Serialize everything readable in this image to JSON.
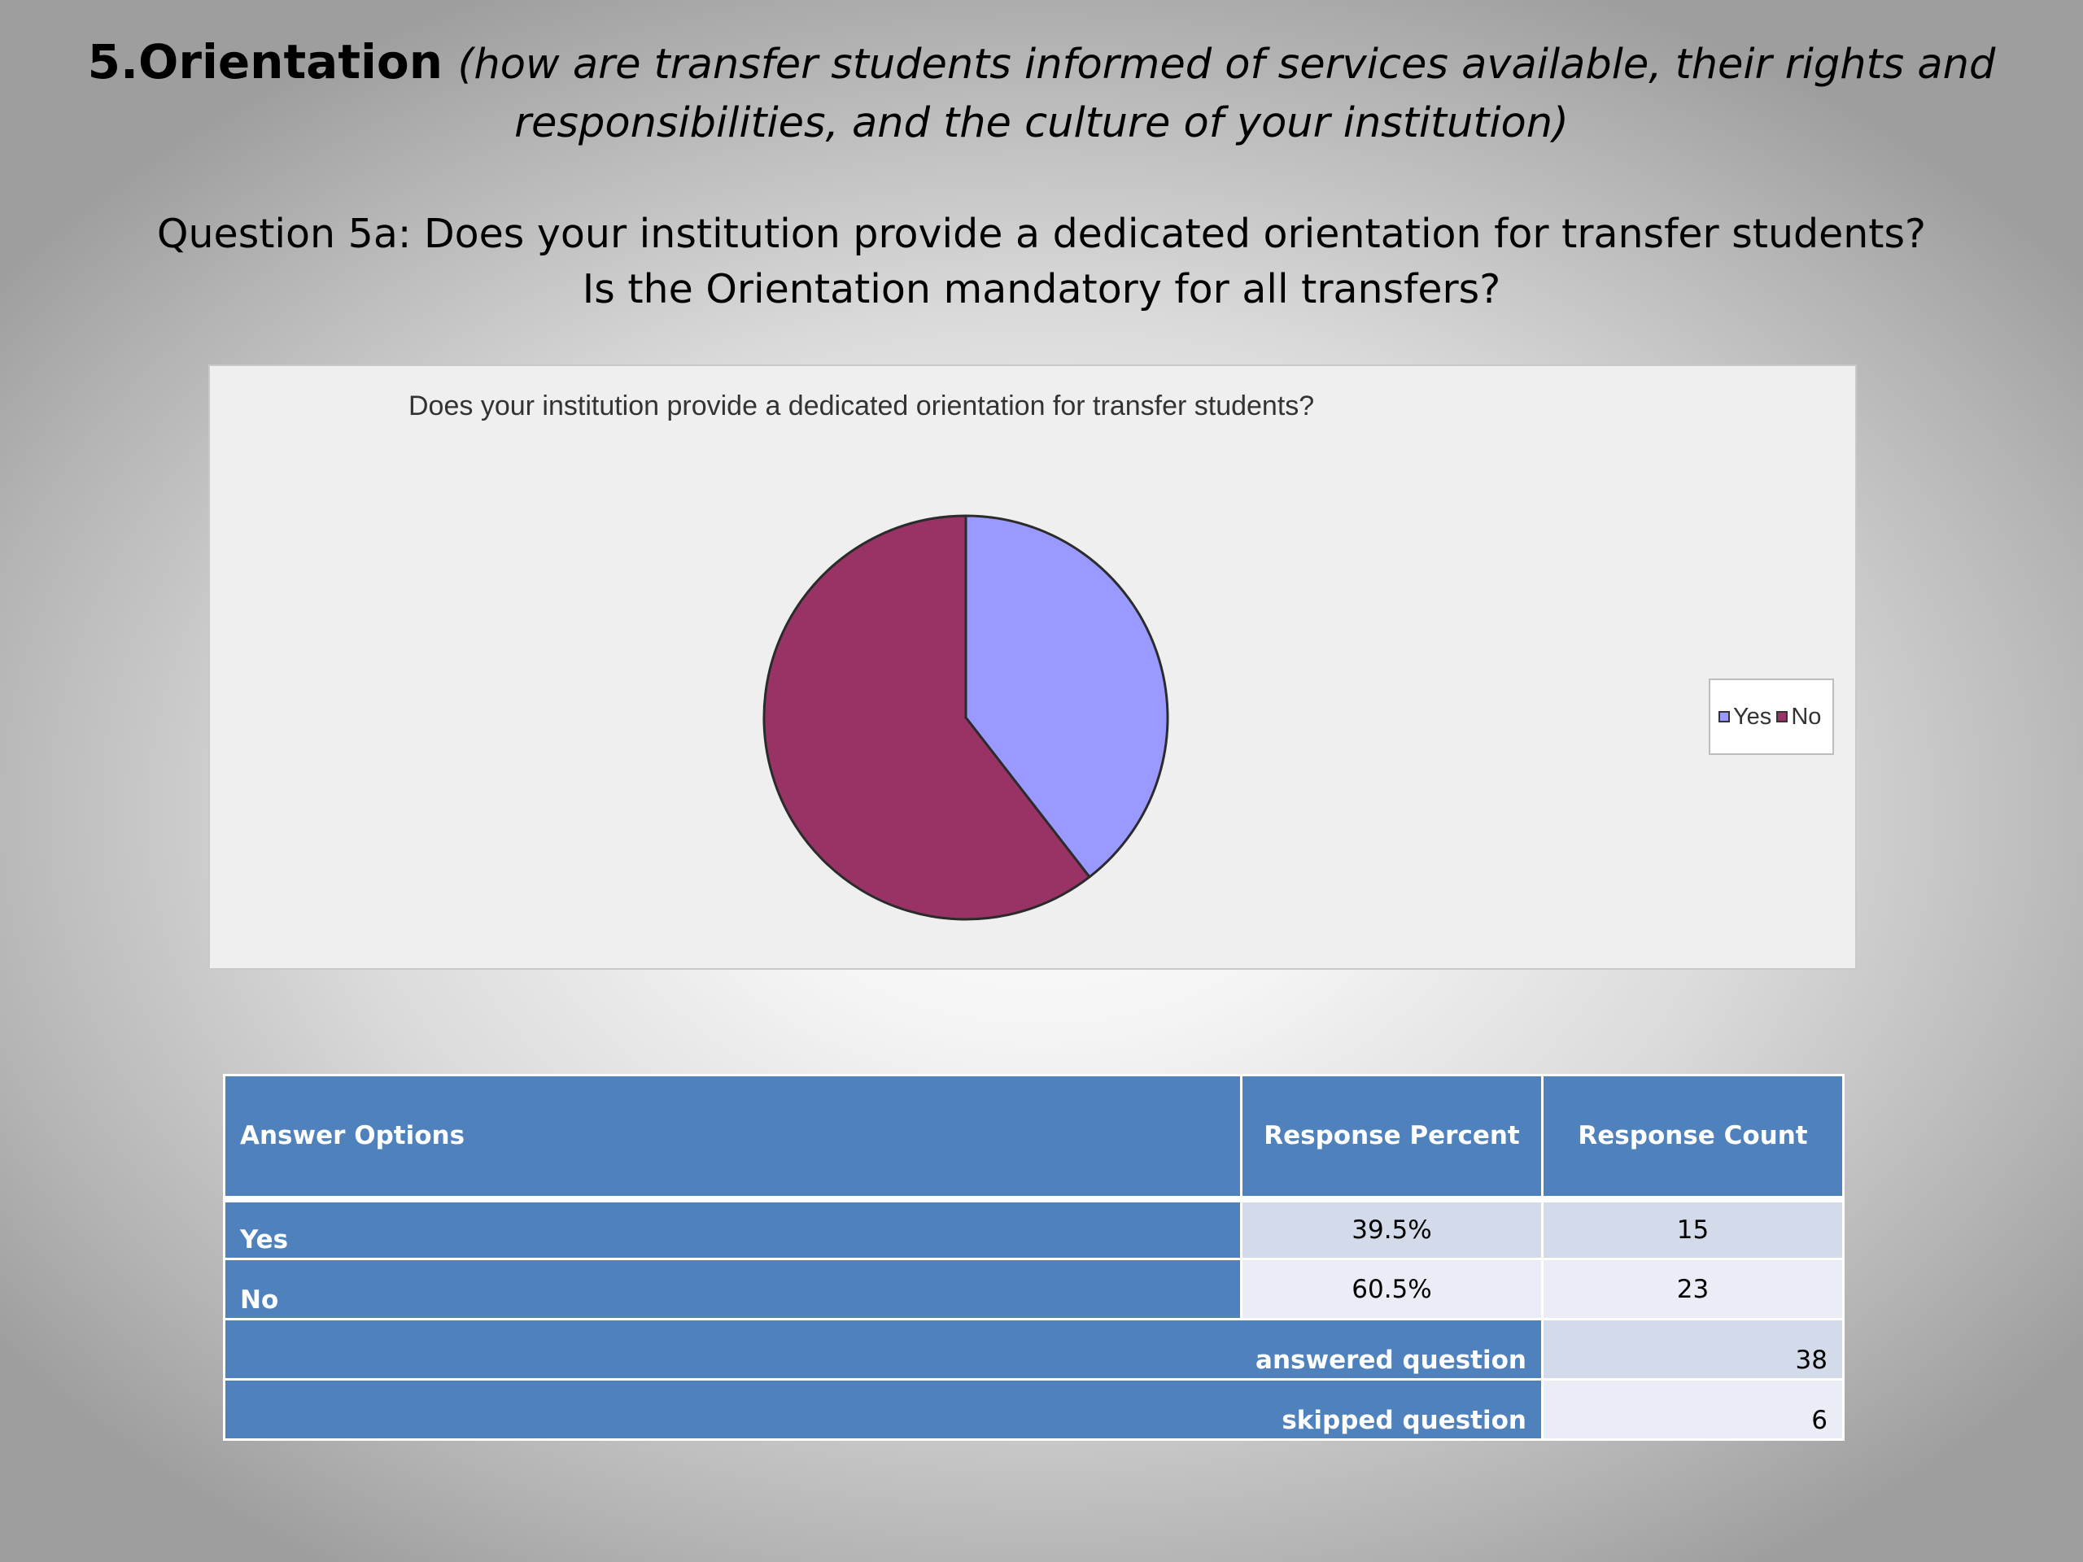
{
  "slide": {
    "title_main": "5.Orientation",
    "title_sub_line1": "(how are transfer students informed of services available, their rights and",
    "title_sub_line2": "responsibilities, and the culture of your institution)",
    "question_line1": "Question 5a: Does your institution provide a dedicated orientation for transfer students?",
    "question_line2": "Is the Orientation mandatory for all transfers?"
  },
  "chart_data": {
    "type": "pie",
    "title": "Does your institution provide a dedicated orientation for transfer students?",
    "categories": [
      "Yes",
      "No"
    ],
    "values": [
      39.5,
      60.5
    ],
    "colors": [
      "#9999ff",
      "#993366"
    ],
    "legend_position": "right",
    "legend": [
      "Yes",
      "No"
    ]
  },
  "table": {
    "headers": [
      "Answer Options",
      "Response Percent",
      "Response Count"
    ],
    "rows": [
      {
        "option": "Yes",
        "percent": "39.5%",
        "count": "15"
      },
      {
        "option": "No",
        "percent": "60.5%",
        "count": "23"
      }
    ],
    "answered_label": "answered question",
    "answered_value": "38",
    "skipped_label": "skipped question",
    "skipped_value": "6"
  }
}
